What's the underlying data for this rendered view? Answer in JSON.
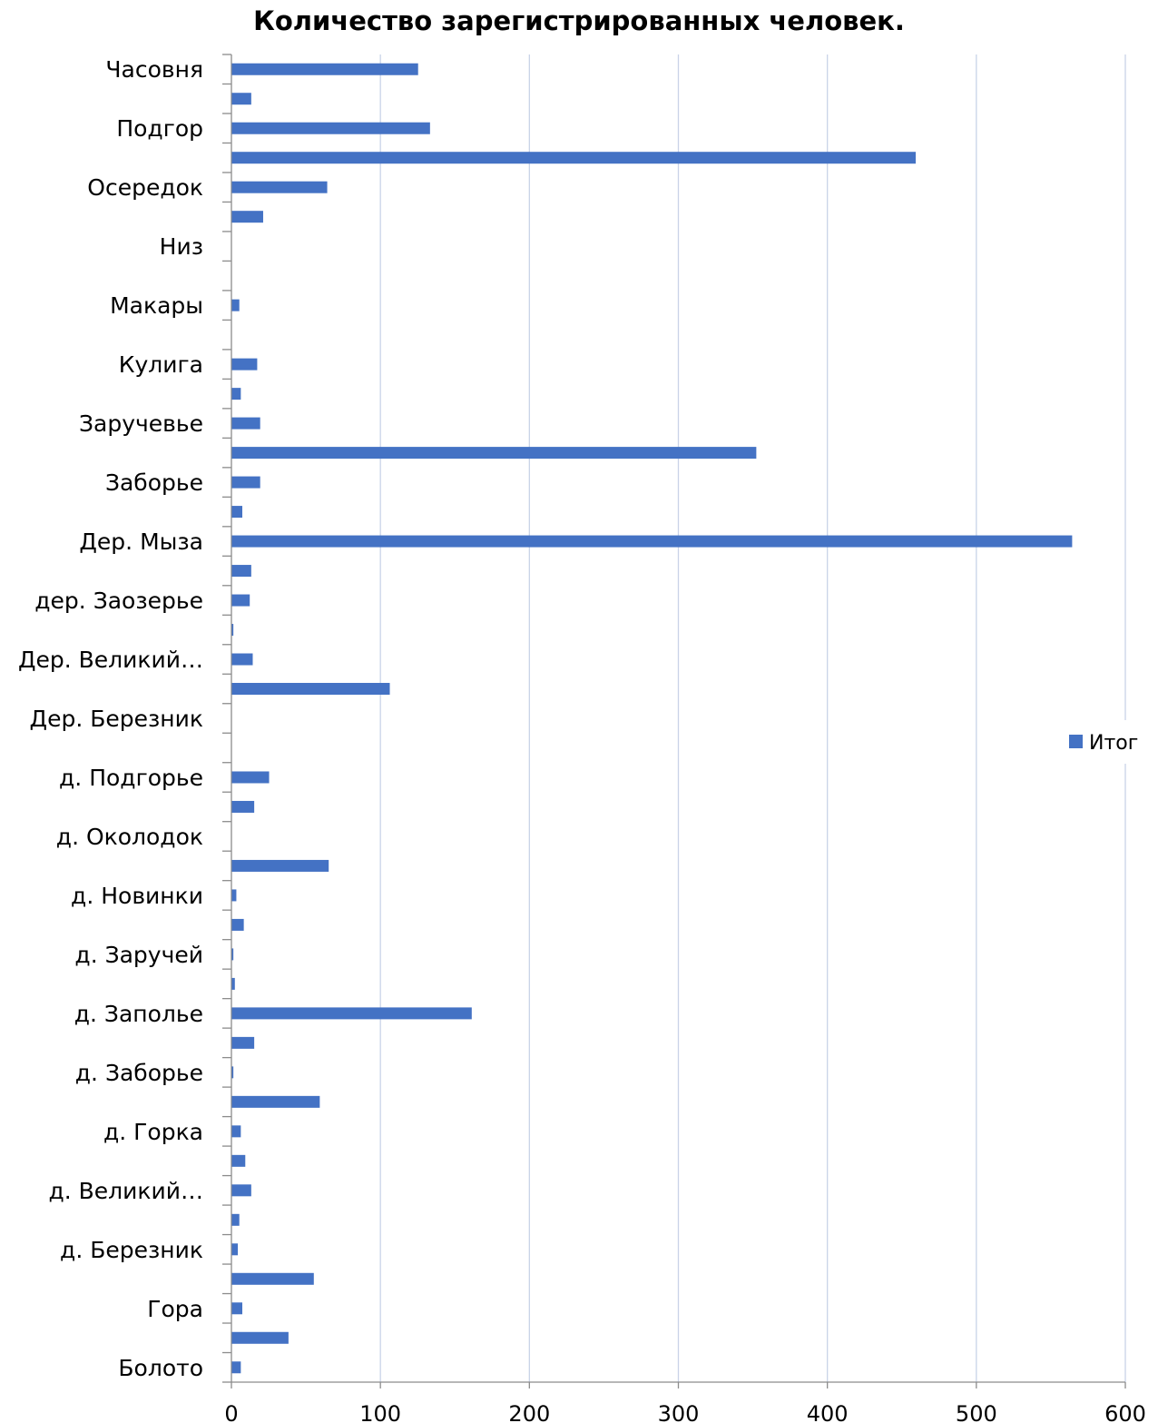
{
  "chart_data": {
    "type": "bar",
    "orientation": "horizontal",
    "title": "Количество зарегистрированных человек.",
    "xlabel": "",
    "ylabel": "",
    "xlim": [
      0,
      600
    ],
    "xticks": [
      0,
      100,
      200,
      300,
      400,
      500,
      600
    ],
    "grid": true,
    "legend": "right",
    "color": "#4472c4",
    "categories": [
      "Часовня",
      "",
      "Подгор",
      "",
      "Осередок",
      "",
      "Низ",
      "",
      "Макары",
      "",
      "Кулига",
      "",
      "Заручевье",
      "",
      "Заборье",
      "",
      "Дер. Мыза",
      "",
      "дер. Заозерье",
      "",
      "Дер. Великий…",
      "",
      "Дер. Березник",
      "",
      "д. Подгорье",
      "",
      "д. Околодок",
      "",
      "д. Новинки",
      "",
      "д. Заручей",
      "",
      "д. Заполье",
      "",
      "д. Заборье",
      "",
      "д. Горка",
      "",
      "д. Великий…",
      "",
      "д. Березник",
      "",
      "Гора",
      "",
      "Болото"
    ],
    "series": [
      {
        "name": "Итог",
        "values": [
          125,
          13,
          133,
          459,
          64,
          21,
          0,
          0,
          5,
          0,
          17,
          6,
          19,
          352,
          19,
          7,
          564,
          13,
          12,
          1,
          14,
          106,
          0,
          0,
          25,
          15,
          0,
          65,
          3,
          8,
          1,
          2,
          161,
          15,
          1,
          59,
          6,
          9,
          13,
          5,
          4,
          55,
          7,
          38,
          6
        ]
      }
    ]
  }
}
